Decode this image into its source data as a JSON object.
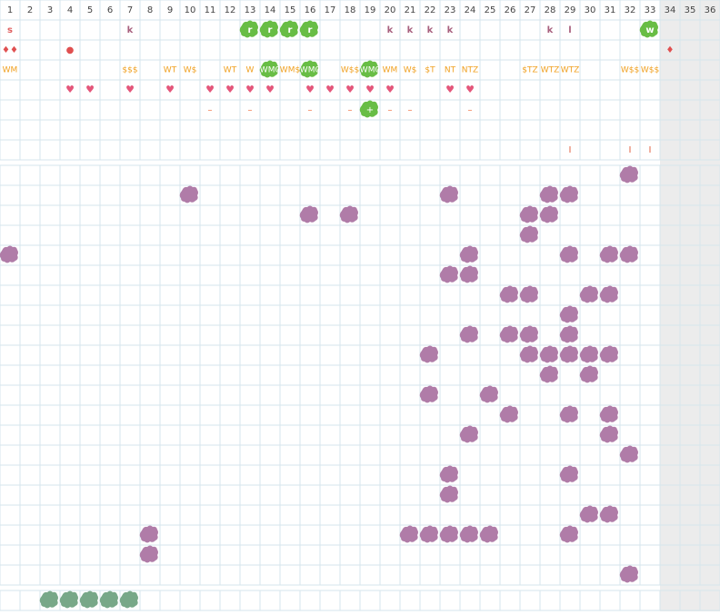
{
  "columns": [
    "1",
    "2",
    "3",
    "4",
    "5",
    "6",
    "7",
    "8",
    "9",
    "10",
    "11",
    "12",
    "13",
    "14",
    "15",
    "16",
    "17",
    "18",
    "19",
    "20",
    "21",
    "22",
    "23",
    "24",
    "25",
    "26",
    "27",
    "28",
    "29",
    "30",
    "31",
    "32",
    "33",
    "34",
    "35",
    "36"
  ],
  "top_rows": [
    {
      "kind": "letter",
      "cells": [
        {
          "col": 1,
          "text": "s",
          "style": "red"
        },
        {
          "col": 7,
          "text": "k"
        },
        {
          "col": 13,
          "text": "r",
          "style": "green"
        },
        {
          "col": 14,
          "text": "r",
          "style": "green"
        },
        {
          "col": 15,
          "text": "r",
          "style": "green"
        },
        {
          "col": 16,
          "text": "r",
          "style": "green"
        },
        {
          "col": 20,
          "text": "k"
        },
        {
          "col": 21,
          "text": "k"
        },
        {
          "col": 22,
          "text": "k"
        },
        {
          "col": 23,
          "text": "k"
        },
        {
          "col": 28,
          "text": "k"
        },
        {
          "col": 29,
          "text": "l"
        },
        {
          "col": 33,
          "text": "w",
          "style": "green"
        }
      ]
    },
    {
      "kind": "drop",
      "cells": [
        {
          "col": 1,
          "text": "♦♦"
        },
        {
          "col": 4,
          "text": "●"
        },
        {
          "col": 34,
          "text": "♦"
        }
      ]
    },
    {
      "kind": "orange",
      "cells": [
        {
          "col": 1,
          "text": "WM"
        },
        {
          "col": 7,
          "text": "$$$"
        },
        {
          "col": 9,
          "text": "WT"
        },
        {
          "col": 10,
          "text": "W$"
        },
        {
          "col": 12,
          "text": "WT"
        },
        {
          "col": 13,
          "text": "W"
        },
        {
          "col": 14,
          "text": "WM0",
          "style": "green"
        },
        {
          "col": 15,
          "text": "WM$"
        },
        {
          "col": 16,
          "text": "WM0",
          "style": "green"
        },
        {
          "col": 18,
          "text": "W$$"
        },
        {
          "col": 19,
          "text": "WM0",
          "style": "green"
        },
        {
          "col": 20,
          "text": "WM"
        },
        {
          "col": 21,
          "text": "W$"
        },
        {
          "col": 22,
          "text": "$T"
        },
        {
          "col": 23,
          "text": "NT"
        },
        {
          "col": 24,
          "text": "NTZ"
        },
        {
          "col": 27,
          "text": "$TZ"
        },
        {
          "col": 28,
          "text": "WTZ"
        },
        {
          "col": 29,
          "text": "WTZ"
        },
        {
          "col": 32,
          "text": "W$$"
        },
        {
          "col": 33,
          "text": "W$$"
        }
      ]
    },
    {
      "kind": "heart",
      "cells": [
        {
          "col": 4,
          "text": "♥"
        },
        {
          "col": 5,
          "text": "♥"
        },
        {
          "col": 7,
          "text": "♥"
        },
        {
          "col": 9,
          "text": "♥"
        },
        {
          "col": 11,
          "text": "♥"
        },
        {
          "col": 12,
          "text": "♥"
        },
        {
          "col": 13,
          "text": "♥"
        },
        {
          "col": 14,
          "text": "♥"
        },
        {
          "col": 16,
          "text": "♥"
        },
        {
          "col": 17,
          "text": "♥"
        },
        {
          "col": 18,
          "text": "♥"
        },
        {
          "col": 19,
          "text": "♥"
        },
        {
          "col": 20,
          "text": "♥"
        },
        {
          "col": 23,
          "text": "♥"
        },
        {
          "col": 24,
          "text": "♥"
        }
      ]
    },
    {
      "kind": "dash",
      "cells": [
        {
          "col": 11,
          "text": "–"
        },
        {
          "col": 13,
          "text": "–"
        },
        {
          "col": 16,
          "text": "–"
        },
        {
          "col": 18,
          "text": "–"
        },
        {
          "col": 19,
          "text": "+",
          "style": "green"
        },
        {
          "col": 20,
          "text": "–"
        },
        {
          "col": 21,
          "text": "–"
        },
        {
          "col": 24,
          "text": "–"
        }
      ]
    },
    {
      "kind": "empty",
      "cells": []
    },
    {
      "kind": "bar",
      "cells": [
        {
          "col": 29,
          "text": "I"
        },
        {
          "col": 32,
          "text": "I"
        },
        {
          "col": 33,
          "text": "I"
        }
      ]
    }
  ],
  "board": [
    [
      32
    ],
    [
      10,
      23,
      28,
      29
    ],
    [
      16,
      18,
      27,
      28
    ],
    [
      27
    ],
    [
      1,
      24,
      29,
      31,
      32
    ],
    [
      23,
      24
    ],
    [
      26,
      27,
      30,
      31
    ],
    [
      29
    ],
    [
      24,
      26,
      27,
      29
    ],
    [
      22,
      27,
      28,
      29,
      30,
      31
    ],
    [
      28,
      30
    ],
    [
      22,
      25
    ],
    [
      26,
      29,
      31
    ],
    [
      24,
      31
    ],
    [
      32
    ],
    [
      23,
      29
    ],
    [
      23
    ],
    [
      30,
      31
    ],
    [
      8,
      21,
      22,
      23,
      24,
      25,
      29
    ],
    [
      8
    ],
    [
      32
    ]
  ],
  "bottom": [
    3,
    4,
    5,
    6,
    7
  ]
}
